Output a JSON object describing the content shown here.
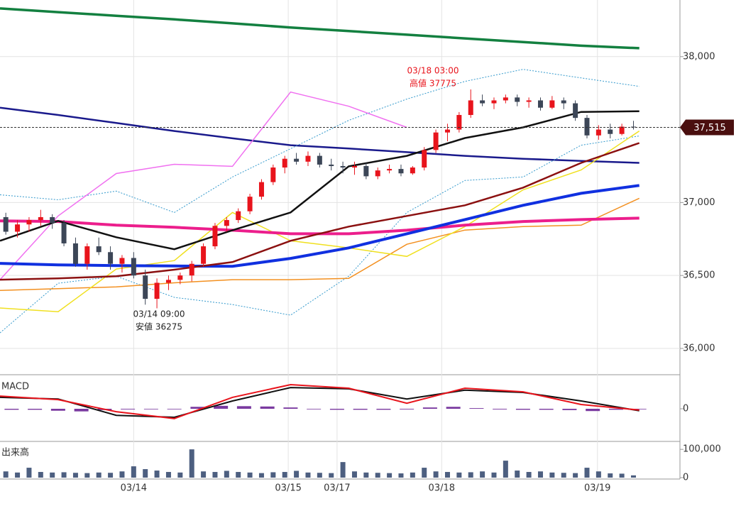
{
  "chart_data": [
    {
      "type": "candlestick",
      "xlim": [
        0,
        117
      ],
      "xticks": [
        {
          "value": 23,
          "label": "03/14"
        },
        {
          "value": 49.6,
          "label": "03/15"
        },
        {
          "value": 58,
          "label": "03/17"
        },
        {
          "value": 76,
          "label": "03/18"
        },
        {
          "value": 102.8,
          "label": "03/19"
        }
      ],
      "ylim": [
        35820,
        38388
      ],
      "yticks": [
        {
          "value": 36000,
          "label": "36,000"
        },
        {
          "value": 36500,
          "label": "36,500"
        },
        {
          "value": 37000,
          "label": "37,000"
        },
        {
          "value": 38000,
          "label": "38,000"
        }
      ],
      "grid": true,
      "up_color": "#e8141c",
      "down_color": "#3c4657",
      "candles": {
        "x": [
          1,
          3,
          5,
          7,
          9,
          11,
          13,
          15,
          17,
          19,
          21,
          23,
          25,
          27,
          29,
          31,
          33,
          35,
          37,
          39,
          41,
          43,
          45,
          47,
          49,
          51,
          53,
          55,
          57,
          59,
          61,
          63,
          65,
          67,
          69,
          71,
          73,
          75,
          77,
          79,
          81,
          83,
          85,
          87,
          89,
          91,
          93,
          95,
          97,
          99,
          101,
          103,
          105,
          107,
          109
        ],
        "open": [
          36900,
          36800,
          36850,
          36880,
          36900,
          36860,
          36720,
          36580,
          36700,
          36660,
          36580,
          36620,
          36500,
          36340,
          36450,
          36470,
          36500,
          36580,
          36700,
          36840,
          36880,
          36940,
          37040,
          37140,
          37240,
          37300,
          37280,
          37320,
          37260,
          37250,
          37240,
          37250,
          37180,
          37220,
          37230,
          37200,
          37240,
          37360,
          37480,
          37500,
          37600,
          37700,
          37680,
          37700,
          37720,
          37690,
          37700,
          37650,
          37700,
          37680,
          37580,
          37460,
          37500,
          37470,
          37520
        ],
        "high": [
          36930,
          36880,
          36900,
          36950,
          36920,
          36880,
          36760,
          36720,
          36760,
          36700,
          36640,
          36660,
          36540,
          36480,
          36500,
          36520,
          36600,
          36720,
          36860,
          36900,
          36960,
          37060,
          37160,
          37260,
          37320,
          37340,
          37350,
          37340,
          37300,
          37280,
          37280,
          37270,
          37240,
          37260,
          37260,
          37250,
          37380,
          37500,
          37540,
          37620,
          37775,
          37740,
          37720,
          37740,
          37740,
          37720,
          37720,
          37730,
          37720,
          37700,
          37600,
          37530,
          37540,
          37540,
          37560
        ],
        "low": [
          36780,
          36760,
          36800,
          36840,
          36820,
          36700,
          36560,
          36540,
          36640,
          36540,
          36520,
          36480,
          36300,
          36275,
          36400,
          36440,
          36460,
          36560,
          36680,
          36800,
          36860,
          36920,
          37020,
          37120,
          37200,
          37260,
          37250,
          37240,
          37220,
          37200,
          37190,
          37160,
          37160,
          37200,
          37180,
          37190,
          37220,
          37340,
          37420,
          37480,
          37580,
          37660,
          37640,
          37680,
          37660,
          37650,
          37630,
          37640,
          37640,
          37560,
          37440,
          37430,
          37440,
          37460,
          37500
        ],
        "close": [
          36800,
          36850,
          36880,
          36900,
          36860,
          36720,
          36580,
          36700,
          36660,
          36580,
          36620,
          36500,
          36340,
          36450,
          36470,
          36500,
          36580,
          36700,
          36840,
          36880,
          36940,
          37040,
          37140,
          37240,
          37300,
          37280,
          37320,
          37260,
          37250,
          37240,
          37250,
          37180,
          37220,
          37230,
          37200,
          37240,
          37360,
          37480,
          37500,
          37600,
          37700,
          37680,
          37700,
          37720,
          37690,
          37700,
          37650,
          37700,
          37680,
          37580,
          37460,
          37500,
          37470,
          37520,
          37515
        ]
      },
      "line_x": [
        0,
        10,
        20,
        30,
        40,
        50,
        60,
        70,
        80,
        90,
        100,
        110
      ],
      "lines": [
        {
          "color": "#138040",
          "width": 3.5,
          "values": [
            38330,
            38305,
            38280,
            38255,
            38228,
            38200,
            38175,
            38150,
            38125,
            38100,
            38075,
            38058
          ]
        },
        {
          "color": "#1a1a8c",
          "width": 2.5,
          "values": [
            37650,
            37600,
            37545,
            37490,
            37440,
            37393,
            37370,
            37345,
            37320,
            37300,
            37285,
            37272
          ]
        },
        {
          "color": "#3399cc",
          "width": 1,
          "dotted": true,
          "values": [
            37053,
            37019,
            37078,
            36932,
            37175,
            37369,
            37563,
            37709,
            37830,
            37913,
            37854,
            37796
          ]
        },
        {
          "color": "#3399cc",
          "width": 1,
          "dotted": true,
          "values": [
            36107,
            36447,
            36495,
            36350,
            36301,
            36228,
            36495,
            36932,
            37151,
            37175,
            37393,
            37456
          ]
        },
        {
          "color": "#f39020",
          "width": 1.5,
          "values": [
            36398,
            36410,
            36422,
            36450,
            36471,
            36471,
            36480,
            36714,
            36811,
            36835,
            36845,
            37029
          ]
        },
        {
          "color": "#f0e020",
          "width": 1.5,
          "values": [
            36277,
            36252,
            36544,
            36602,
            36932,
            36738,
            36689,
            36631,
            36835,
            37087,
            37223,
            37490
          ]
        },
        {
          "color": "#f070f0",
          "width": 1.5,
          "values": [
            36471,
            36908,
            37199,
            37262,
            37248,
            37757,
            37660,
            37515,
            null,
            null,
            null,
            null
          ]
        },
        {
          "color": "#ec1e8c",
          "width": 4,
          "values": [
            36874,
            36870,
            36845,
            36830,
            36810,
            36786,
            36786,
            36810,
            36845,
            36870,
            36883,
            36893
          ]
        },
        {
          "color": "#1030e0",
          "width": 4,
          "values": [
            36583,
            36573,
            36568,
            36565,
            36563,
            36617,
            36689,
            36786,
            36883,
            36981,
            37063,
            37117
          ]
        },
        {
          "color": "#8b1010",
          "width": 2.5,
          "values": [
            36471,
            36480,
            36495,
            36540,
            36592,
            36738,
            36835,
            36908,
            36981,
            37102,
            37272,
            37408
          ]
        },
        {
          "color": "#111111",
          "width": 2.5,
          "values": [
            36738,
            36874,
            36762,
            36680,
            36810,
            36932,
            37248,
            37320,
            37442,
            37515,
            37621,
            37626
          ]
        }
      ],
      "annotations": [
        {
          "lines": [
            "03/18 03:00",
            "高値 37775"
          ],
          "color": "#e8141c"
        },
        {
          "lines": [
            "03/14 09:00",
            "安値 36275"
          ],
          "color": "#222222"
        }
      ],
      "last_price": {
        "value": 37515,
        "label": "37,515"
      }
    },
    {
      "type": "macd",
      "title": "MACD",
      "xlim": [
        0,
        117
      ],
      "ylim": [
        -100,
        100
      ],
      "yticks": [
        0
      ],
      "x": [
        0,
        10,
        20,
        30,
        40,
        50,
        60,
        70,
        80,
        90,
        100,
        110
      ],
      "series": [
        {
          "color": "#111111",
          "values": [
            35,
            30,
            -20,
            -26,
            24,
            65,
            61,
            30,
            57,
            50,
            24,
            -6
          ]
        },
        {
          "color": "#e8141c",
          "values": [
            39,
            28,
            -9,
            -30,
            35,
            74,
            63,
            17,
            63,
            52,
            13,
            -4
          ]
        }
      ],
      "histogram": {
        "color": "#7a3aa0",
        "x": [
          2,
          6,
          10,
          14,
          18,
          22,
          26,
          30,
          34,
          38,
          42,
          46,
          50,
          54,
          58,
          62,
          66,
          70,
          74,
          78,
          82,
          86,
          90,
          94,
          98,
          102,
          106,
          110
        ],
        "values": [
          -3,
          -3,
          -6,
          -8,
          -4,
          -2,
          -1,
          0,
          6,
          9,
          8,
          7,
          4,
          -1,
          -3,
          -3,
          -3,
          -2,
          4,
          6,
          2,
          -2,
          -3,
          -3,
          -4,
          -7,
          -3,
          0
        ]
      }
    },
    {
      "type": "bar",
      "title": "出来高",
      "color": "#4d5f80",
      "xlim": [
        0,
        117
      ],
      "ylim": [
        0,
        108000
      ],
      "yticks": [
        {
          "value": 100000,
          "label": "100,000"
        },
        0
      ],
      "x": [
        1,
        3,
        5,
        7,
        9,
        11,
        13,
        15,
        17,
        19,
        21,
        23,
        25,
        27,
        29,
        31,
        33,
        35,
        37,
        39,
        41,
        43,
        45,
        47,
        49,
        51,
        53,
        55,
        57,
        59,
        61,
        63,
        65,
        67,
        69,
        71,
        73,
        75,
        77,
        79,
        81,
        83,
        85,
        87,
        89,
        91,
        93,
        95,
        97,
        99,
        101,
        103,
        105,
        107,
        109
      ],
      "values": [
        22000,
        18000,
        35000,
        20000,
        18000,
        19000,
        17000,
        16000,
        18000,
        17000,
        22000,
        40000,
        30000,
        25000,
        20000,
        18000,
        100000,
        22000,
        20000,
        24000,
        20000,
        18000,
        16000,
        19000,
        20000,
        24000,
        18000,
        17000,
        16000,
        55000,
        22000,
        18000,
        17000,
        16000,
        15000,
        18000,
        35000,
        22000,
        20000,
        18000,
        19000,
        22000,
        18000,
        60000,
        25000,
        20000,
        22000,
        18000,
        17000,
        16000,
        35000,
        22000,
        15000,
        14000,
        8000
      ]
    }
  ]
}
